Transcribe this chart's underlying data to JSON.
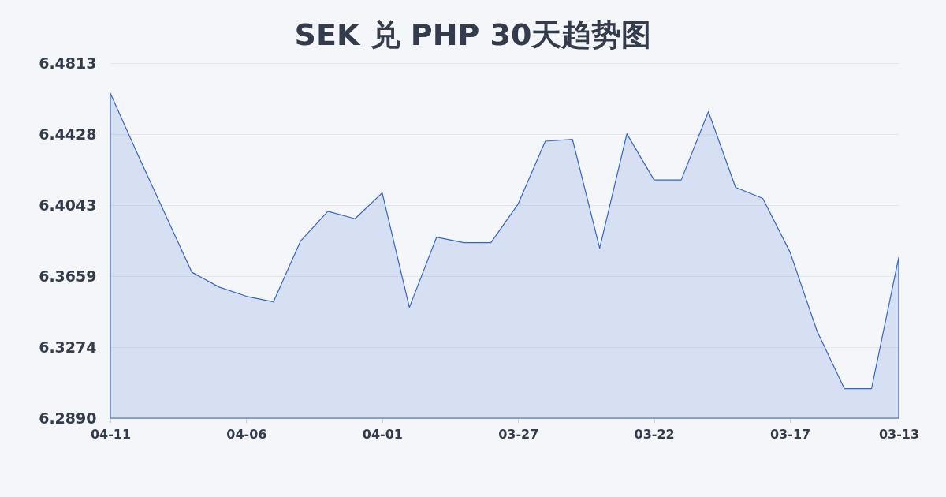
{
  "chart_data": {
    "type": "area",
    "title": "SEK 兑 PHP 30天趋势图",
    "categories": [
      "04-11",
      null,
      null,
      null,
      null,
      "04-06",
      null,
      null,
      null,
      null,
      "04-01",
      null,
      null,
      null,
      null,
      "03-27",
      null,
      null,
      null,
      null,
      "03-22",
      null,
      null,
      null,
      null,
      "03-17",
      null,
      null,
      null,
      "03-13"
    ],
    "series": [
      {
        "color": "#3366cc",
        "values": [
          6.465,
          6.432,
          6.4,
          6.368,
          6.36,
          6.355,
          6.352,
          6.385,
          6.401,
          6.397,
          6.411,
          6.349,
          6.387,
          6.384,
          6.384,
          6.405,
          6.439,
          6.44,
          6.381,
          6.443,
          6.418,
          6.418,
          6.455,
          6.414,
          6.408,
          6.379,
          6.336,
          6.305,
          6.305,
          6.376
        ]
      }
    ],
    "ylim": [
      6.289,
      6.4813
    ],
    "yticks": [
      {
        "value": 6.289,
        "label": "6.2890"
      },
      6.3274,
      6.3659,
      6.4043,
      6.4428,
      6.4813
    ],
    "grid": "y"
  }
}
